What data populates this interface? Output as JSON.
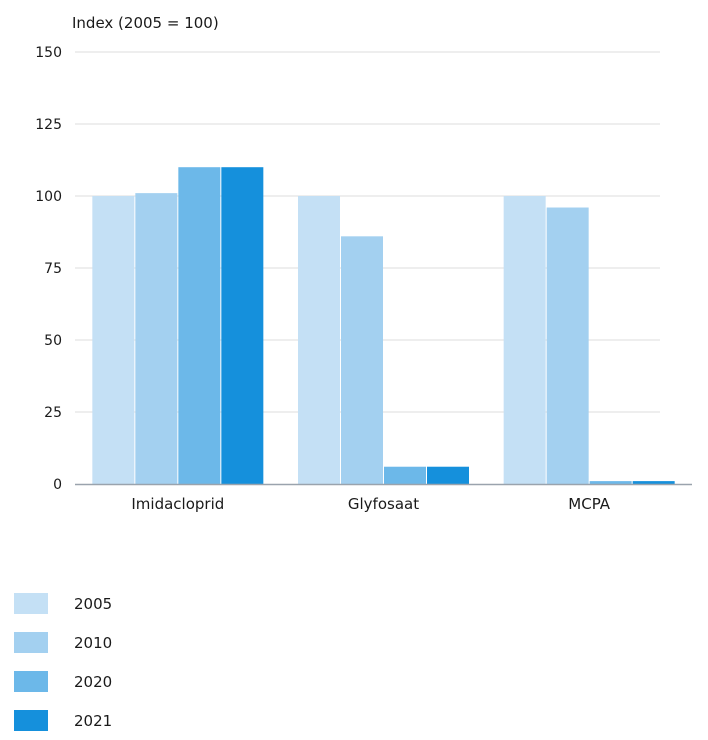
{
  "chart_data": {
    "type": "bar",
    "ylabel": "Index (2005 = 100)",
    "xlabel": "",
    "ylim": [
      0,
      150
    ],
    "yticks": [
      0,
      25,
      50,
      75,
      100,
      125,
      150
    ],
    "categories": [
      "Imidacloprid",
      "Glyfosaat",
      "MCPA"
    ],
    "series": [
      {
        "name": "2005",
        "color": "#c4e0f5",
        "values": [
          100,
          100,
          100
        ]
      },
      {
        "name": "2010",
        "color": "#a3d0f0",
        "values": [
          101,
          86,
          96
        ]
      },
      {
        "name": "2020",
        "color": "#6cb8e9",
        "values": [
          110,
          6,
          1
        ]
      },
      {
        "name": "2021",
        "color": "#1590dc",
        "values": [
          110,
          6,
          1
        ]
      }
    ],
    "grid": true,
    "legend_position": "bottom-left"
  }
}
